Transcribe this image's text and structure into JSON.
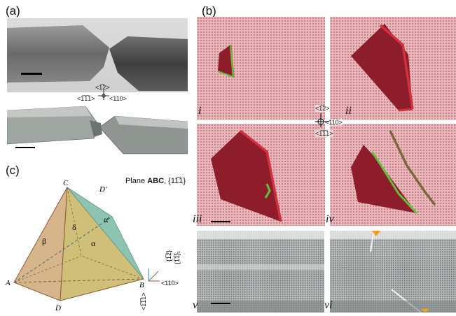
{
  "panels": {
    "a": {
      "label": "(a)",
      "axes": {
        "top": "<1̅2>",
        "left": "<1̅1̅1>",
        "right": "<110>"
      }
    },
    "b": {
      "label": "(b)",
      "subpanels": [
        "i",
        "ii",
        "iii",
        "iv",
        "v",
        "vi"
      ],
      "axes": {
        "top": "<1̅2>",
        "right": "<110>",
        "bottom": "<1̅1̅1>"
      }
    },
    "c": {
      "label": "(c)",
      "title_prefix": "Plane ",
      "title_plane": "ABC",
      "title_family": ", {11̅1}",
      "vertices": {
        "A": "A",
        "B": "B",
        "C": "C",
        "D": "D",
        "Dprime": "D'"
      },
      "angles": {
        "alpha": "α",
        "beta": "β",
        "delta": "δ",
        "alpha_prime": "α'"
      },
      "axes": {
        "a1": "{1̅2}",
        "a2": "{1̅1̅}₁",
        "a3": "<110>",
        "a4": "<1̅1̅1>"
      }
    }
  },
  "colors": {
    "atom_bg": "#e9b8bd",
    "crack": "#8d1d2a",
    "edge_red": "#d3303c",
    "edge_green": "#5fc23b"
  }
}
